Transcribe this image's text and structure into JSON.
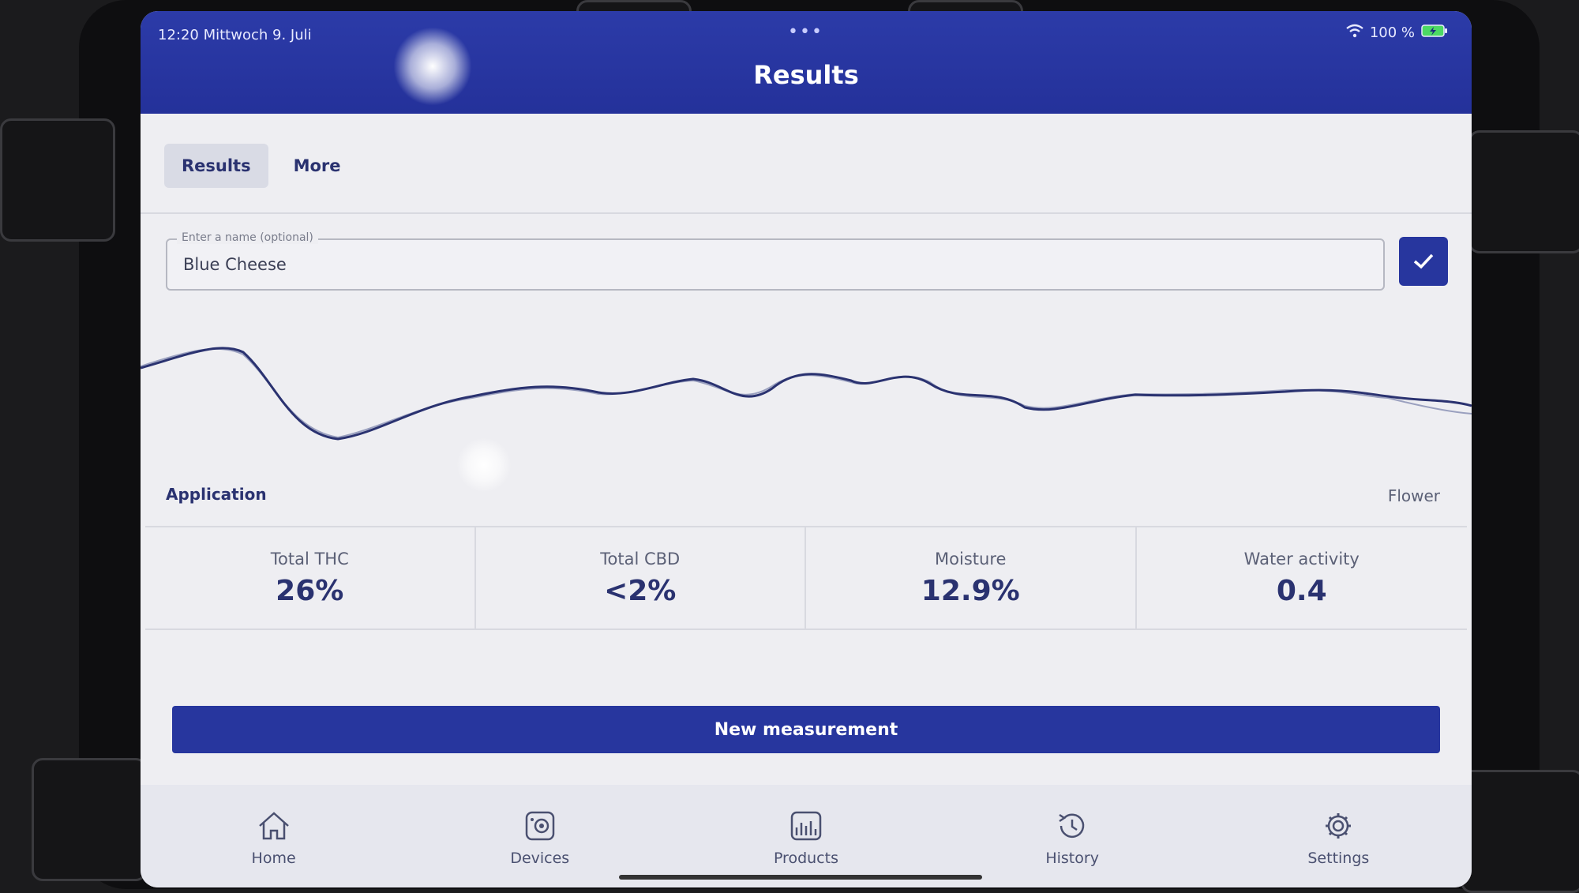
{
  "status": {
    "time_date": "12:20  Mittwoch 9. Juli",
    "battery": "100 %"
  },
  "header": {
    "title": "Results"
  },
  "tabs": [
    {
      "label": "Results"
    },
    {
      "label": "More"
    }
  ],
  "name_field": {
    "label": "Enter a name (optional)",
    "value": "Blue Cheese"
  },
  "chart": {
    "left_label": "Application",
    "right_label": "Flower"
  },
  "results": [
    {
      "label": "Total THC",
      "value": "26%"
    },
    {
      "label": "Total CBD",
      "value": "<2%"
    },
    {
      "label": "Moisture",
      "value": "12.9%"
    },
    {
      "label": "Water activity",
      "value": "0.4"
    }
  ],
  "actions": {
    "new_measurement": "New measurement"
  },
  "nav": [
    {
      "label": "Home",
      "icon": "home-icon"
    },
    {
      "label": "Devices",
      "icon": "device-icon"
    },
    {
      "label": "Products",
      "icon": "products-icon"
    },
    {
      "label": "History",
      "icon": "history-icon"
    },
    {
      "label": "Settings",
      "icon": "gear-icon"
    }
  ],
  "colors": {
    "primary": "#27369e",
    "text": "#2a3270",
    "background": "#eeeef2"
  }
}
